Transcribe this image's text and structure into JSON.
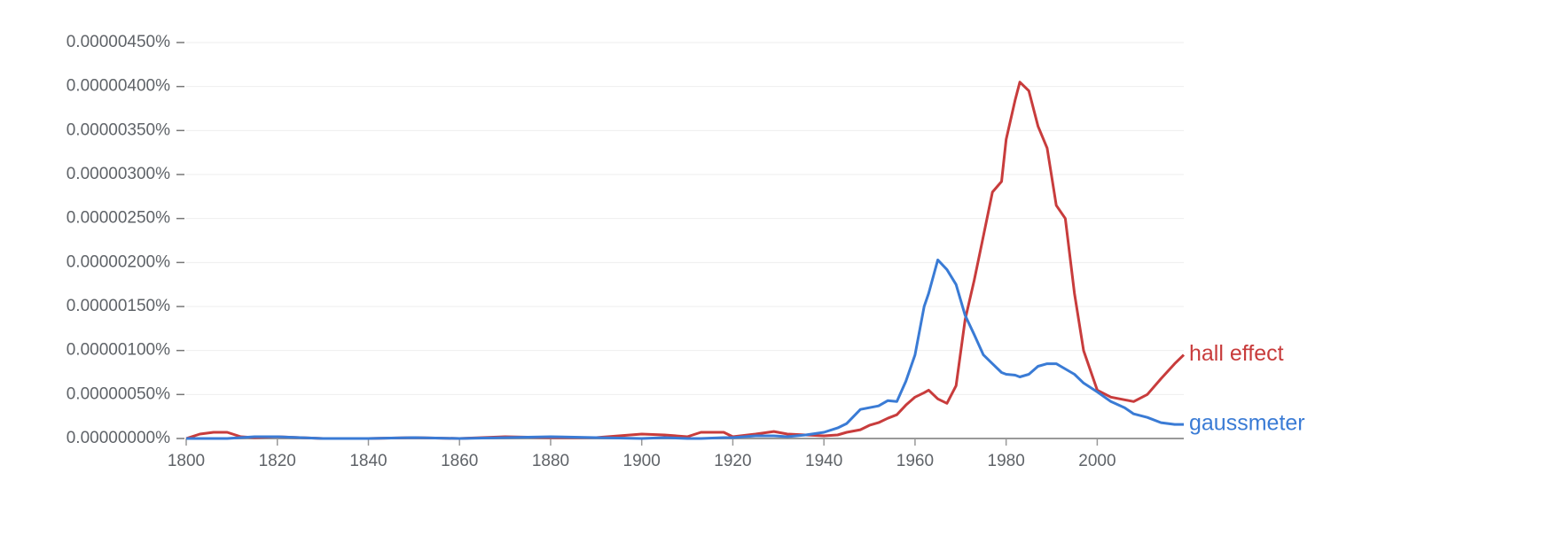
{
  "chart_data": {
    "type": "line",
    "x": [
      1800,
      1803,
      1806,
      1809,
      1812,
      1815,
      1820,
      1825,
      1830,
      1840,
      1850,
      1860,
      1870,
      1880,
      1890,
      1900,
      1905,
      1910,
      1913,
      1918,
      1920,
      1925,
      1929,
      1932,
      1936,
      1940,
      1943,
      1945,
      1948,
      1950,
      1952,
      1954,
      1956,
      1958,
      1960,
      1962,
      1963,
      1965,
      1967,
      1969,
      1971,
      1973,
      1975,
      1977,
      1979,
      1980,
      1982,
      1983,
      1985,
      1987,
      1989,
      1991,
      1993,
      1995,
      1997,
      2000,
      2003,
      2006,
      2008,
      2011,
      2014,
      2017,
      2019
    ],
    "series": [
      {
        "name": "hall effect",
        "color": "#c83c3c",
        "values": [
          0,
          5e-08,
          7e-08,
          7e-08,
          2e-08,
          1e-08,
          2e-08,
          1e-08,
          0,
          0,
          1e-08,
          0,
          2e-08,
          1e-08,
          1e-08,
          5e-08,
          4e-08,
          2e-08,
          7e-08,
          7e-08,
          2e-08,
          5e-08,
          8e-08,
          5e-08,
          4e-08,
          3e-08,
          4e-08,
          7e-08,
          1e-07,
          1.5e-07,
          1.8e-07,
          2.3e-07,
          2.7e-07,
          3.8e-07,
          4.7e-07,
          5.2e-07,
          5.5e-07,
          4.5e-07,
          4e-07,
          6e-07,
          1.35e-06,
          1.8e-06,
          2.3e-06,
          2.8e-06,
          2.92e-06,
          3.4e-06,
          3.85e-06,
          4.05e-06,
          3.95e-06,
          3.55e-06,
          3.3e-06,
          2.65e-06,
          2.5e-06,
          1.65e-06,
          1e-06,
          5.5e-07,
          4.7e-07,
          4.4e-07,
          4.2e-07,
          5e-07,
          6.8e-07,
          8.5e-07,
          9.5e-07
        ]
      },
      {
        "name": "gaussmeter",
        "color": "#3a7bd5",
        "values": [
          0,
          0,
          0,
          0,
          1e-08,
          2e-08,
          2e-08,
          1e-08,
          0,
          0,
          1e-08,
          0,
          1e-08,
          2e-08,
          1e-08,
          0,
          1e-08,
          0,
          0,
          1e-08,
          1e-08,
          3e-08,
          3e-08,
          2e-08,
          4e-08,
          7e-08,
          1.2e-07,
          1.7e-07,
          3.3e-07,
          3.5e-07,
          3.7e-07,
          4.3e-07,
          4.2e-07,
          6.5e-07,
          9.5e-07,
          1.5e-06,
          1.65e-06,
          2.03e-06,
          1.92e-06,
          1.75e-06,
          1.4e-06,
          1.18e-06,
          9.5e-07,
          8.5e-07,
          7.5e-07,
          7.3e-07,
          7.2e-07,
          7e-07,
          7.3e-07,
          8.2e-07,
          8.5e-07,
          8.5e-07,
          7.9e-07,
          7.3e-07,
          6.3e-07,
          5.3e-07,
          4.2e-07,
          3.5e-07,
          2.8e-07,
          2.4e-07,
          1.8e-07,
          1.6e-07,
          1.6e-07
        ]
      }
    ],
    "xlim": [
      1800,
      2019
    ],
    "xticks": [
      1800,
      1820,
      1840,
      1860,
      1880,
      1900,
      1920,
      1940,
      1960,
      1980,
      2000
    ],
    "ylim": [
      0,
      4.5e-06
    ],
    "yticks": [
      {
        "value": 0,
        "label": "0.00000000%"
      },
      {
        "value": 5e-07,
        "label": "0.00000050%"
      },
      {
        "value": 1e-06,
        "label": "0.00000100%"
      },
      {
        "value": 1.5e-06,
        "label": "0.00000150%"
      },
      {
        "value": 2e-06,
        "label": "0.00000200%"
      },
      {
        "value": 2.5e-06,
        "label": "0.00000250%"
      },
      {
        "value": 3e-06,
        "label": "0.00000300%"
      },
      {
        "value": 3.5e-06,
        "label": "0.00000350%"
      },
      {
        "value": 4e-06,
        "label": "0.00000400%"
      },
      {
        "value": 4.5e-06,
        "label": "0.00000450%"
      }
    ],
    "grid": true
  }
}
